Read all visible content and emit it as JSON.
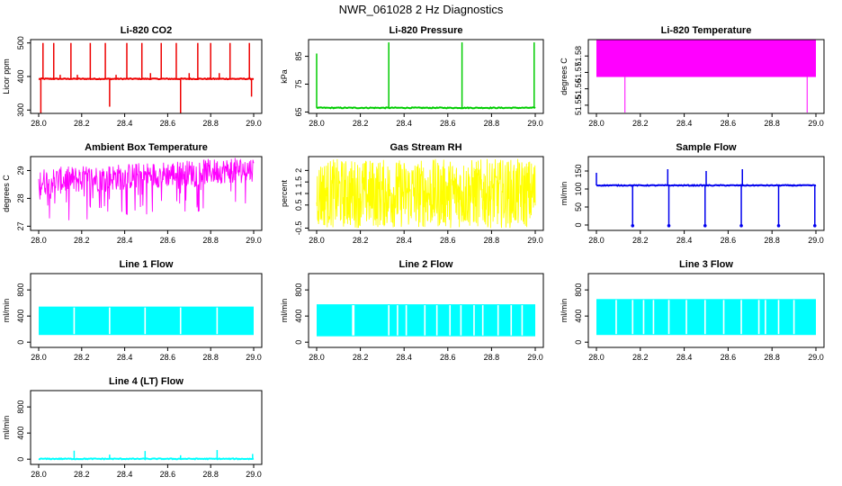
{
  "title": "NWR_061028  2 Hz Diagnostics",
  "colors": {
    "co2": "#ee0000",
    "pressure": "#00cc00",
    "temperature": "#ff00ff",
    "box_temp": "#ff00ff",
    "rh": "#ffff00",
    "sample_flow": "#0000ee",
    "line_flow": "#00ffff",
    "axes": "#000000"
  },
  "chart_data": [
    {
      "id": "co2",
      "type": "line",
      "title": "Li-820 CO2",
      "ylabel": "Licor ppm",
      "xlim": [
        28.0,
        29.0
      ],
      "ylim": [
        290,
        510
      ],
      "xticks": [
        "28.0",
        "28.2",
        "28.4",
        "28.6",
        "28.8",
        "29.0"
      ],
      "yticks": [
        300,
        400,
        500
      ],
      "baseline": 393,
      "spikes": [
        {
          "x": 28.01,
          "y": 290
        },
        {
          "x": 28.02,
          "y": 500
        },
        {
          "x": 28.07,
          "y": 500
        },
        {
          "x": 28.1,
          "y": 405
        },
        {
          "x": 28.15,
          "y": 500
        },
        {
          "x": 28.18,
          "y": 405
        },
        {
          "x": 28.24,
          "y": 500
        },
        {
          "x": 28.31,
          "y": 500
        },
        {
          "x": 28.33,
          "y": 310
        },
        {
          "x": 28.36,
          "y": 405
        },
        {
          "x": 28.41,
          "y": 500
        },
        {
          "x": 28.48,
          "y": 500
        },
        {
          "x": 28.52,
          "y": 410
        },
        {
          "x": 28.57,
          "y": 500
        },
        {
          "x": 28.64,
          "y": 500
        },
        {
          "x": 28.66,
          "y": 290
        },
        {
          "x": 28.7,
          "y": 410
        },
        {
          "x": 28.74,
          "y": 500
        },
        {
          "x": 28.8,
          "y": 500
        },
        {
          "x": 28.84,
          "y": 410
        },
        {
          "x": 28.89,
          "y": 500
        },
        {
          "x": 28.98,
          "y": 500
        },
        {
          "x": 28.99,
          "y": 340
        }
      ]
    },
    {
      "id": "pressure",
      "type": "line",
      "title": "Li-820 Pressure",
      "ylabel": "kPa",
      "xlim": [
        28.0,
        29.0
      ],
      "ylim": [
        64.5,
        91
      ],
      "xticks": [
        "28.0",
        "28.2",
        "28.4",
        "28.6",
        "28.8",
        "29.0"
      ],
      "yticks": [
        65,
        75,
        85
      ],
      "baseline": 66.5,
      "spikes": [
        {
          "x": 28.0,
          "y": 86
        },
        {
          "x": 28.33,
          "y": 90
        },
        {
          "x": 28.665,
          "y": 90
        },
        {
          "x": 28.995,
          "y": 90
        }
      ]
    },
    {
      "id": "temperature",
      "type": "area",
      "title": "Li-820 Temperature",
      "ylabel": "degrees C",
      "xlim": [
        28.0,
        29.0
      ],
      "ylim": [
        51.545,
        51.59
      ],
      "xticks": [
        "28.0",
        "28.2",
        "28.4",
        "28.6",
        "28.8",
        "29.0"
      ],
      "yticks": [
        51.55,
        51.56,
        51.57,
        51.58
      ],
      "band": [
        51.5672,
        51.59
      ],
      "dips": [
        {
          "x": 28.13,
          "y": 51.5455
        },
        {
          "x": 28.96,
          "y": 51.5455
        }
      ]
    },
    {
      "id": "box_temp",
      "type": "line",
      "title": "Ambient Box Temperature",
      "ylabel": "degrees C",
      "xlim": [
        28.0,
        29.0
      ],
      "ylim": [
        26.85,
        29.5
      ],
      "xticks": [
        "28.0",
        "28.2",
        "28.4",
        "28.6",
        "28.8",
        "29.0"
      ],
      "yticks": [
        27.0,
        28.0,
        29.0
      ],
      "band_start": [
        28.1,
        29.1
      ],
      "band_end": [
        28.6,
        29.5
      ]
    },
    {
      "id": "rh",
      "type": "line",
      "title": "Gas Stream RH",
      "ylabel": "percent",
      "xlim": [
        28.0,
        29.0
      ],
      "ylim": [
        -0.6,
        2.6
      ],
      "xticks": [
        "28.0",
        "28.2",
        "28.4",
        "28.6",
        "28.8",
        "29.0"
      ],
      "yticks": [
        -0.5,
        0.5,
        1.0,
        1.5,
        2.0
      ],
      "band": [
        -0.5,
        2.5
      ]
    },
    {
      "id": "sample_flow",
      "type": "line",
      "title": "Sample Flow",
      "ylabel": "ml/min",
      "xlim": [
        28.0,
        29.0
      ],
      "ylim": [
        -15,
        190
      ],
      "xticks": [
        "28.0",
        "28.2",
        "28.4",
        "28.6",
        "28.8",
        "29.0"
      ],
      "yticks": [
        0,
        50,
        100,
        150
      ],
      "baseline": 110,
      "spikes": [
        {
          "x": 28.0,
          "y": 145
        },
        {
          "x": 28.165,
          "y": -2
        },
        {
          "x": 28.325,
          "y": 155
        },
        {
          "x": 28.33,
          "y": -2
        },
        {
          "x": 28.495,
          "y": -2
        },
        {
          "x": 28.5,
          "y": 150
        },
        {
          "x": 28.66,
          "y": -2
        },
        {
          "x": 28.665,
          "y": 155
        },
        {
          "x": 28.83,
          "y": -2
        },
        {
          "x": 28.995,
          "y": -2
        }
      ]
    },
    {
      "id": "line1",
      "type": "area",
      "title": "Line 1 Flow",
      "ylabel": "ml/min",
      "xlim": [
        28.0,
        29.0
      ],
      "ylim": [
        -80,
        1050
      ],
      "xticks": [
        "28.0",
        "28.2",
        "28.4",
        "28.6",
        "28.8",
        "29.0"
      ],
      "yticks": [
        0,
        400,
        800
      ],
      "band": [
        110,
        545
      ],
      "gaps": [
        28.165,
        28.33,
        28.495,
        28.66,
        28.83
      ]
    },
    {
      "id": "line2",
      "type": "area",
      "title": "Line 2 Flow",
      "ylabel": "ml/min",
      "xlim": [
        28.0,
        29.0
      ],
      "ylim": [
        -80,
        1050
      ],
      "xticks": [
        "28.0",
        "28.2",
        "28.4",
        "28.6",
        "28.8",
        "29.0"
      ],
      "yticks": [
        0,
        400,
        800
      ],
      "band": [
        90,
        580
      ],
      "gaps": [
        28.165,
        28.17,
        28.33,
        28.37,
        28.41,
        28.495,
        28.55,
        28.61,
        28.66,
        28.72,
        28.76,
        28.83,
        28.89,
        28.94
      ]
    },
    {
      "id": "line3",
      "type": "area",
      "title": "Line 3 Flow",
      "ylabel": "ml/min",
      "xlim": [
        28.0,
        29.0
      ],
      "ylim": [
        -80,
        1050
      ],
      "xticks": [
        "28.0",
        "28.2",
        "28.4",
        "28.6",
        "28.8",
        "29.0"
      ],
      "yticks": [
        0,
        400,
        800
      ],
      "band": [
        110,
        660
      ],
      "gaps": [
        28.09,
        28.165,
        28.215,
        28.26,
        28.33,
        28.41,
        28.495,
        28.58,
        28.66,
        28.74,
        28.77,
        28.83,
        28.9
      ]
    },
    {
      "id": "line4",
      "type": "line",
      "title": "Line 4 (LT) Flow",
      "ylabel": "ml/min",
      "xlim": [
        28.0,
        29.0
      ],
      "ylim": [
        -80,
        1050
      ],
      "xticks": [
        "28.0",
        "28.2",
        "28.4",
        "28.6",
        "28.8",
        "29.0"
      ],
      "yticks": [
        0,
        400,
        800
      ],
      "baseline": 5,
      "spikes": [
        {
          "x": 28.165,
          "y": 130
        },
        {
          "x": 28.33,
          "y": 70
        },
        {
          "x": 28.495,
          "y": 125
        },
        {
          "x": 28.66,
          "y": 60
        },
        {
          "x": 28.83,
          "y": 140
        },
        {
          "x": 28.995,
          "y": 80
        }
      ]
    }
  ]
}
